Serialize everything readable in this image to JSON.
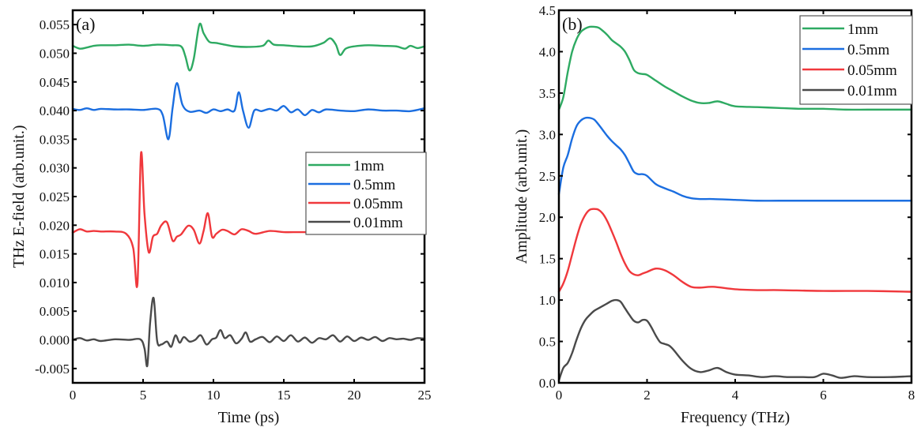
{
  "chart_data": [
    {
      "type": "line",
      "panel_label": "(a)",
      "title": "",
      "xlabel": "Time (ps)",
      "ylabel": "THz E-field (arb.unit.)",
      "xlim": [
        0,
        25
      ],
      "ylim": [
        -0.0075,
        0.0575
      ],
      "xticks": [
        0,
        5,
        10,
        15,
        20,
        25
      ],
      "xtick_labels": [
        "0",
        "5",
        "10",
        "15",
        "20",
        "25"
      ],
      "yticks": [
        -0.005,
        0.0,
        0.005,
        0.01,
        0.015,
        0.02,
        0.025,
        0.03,
        0.035,
        0.04,
        0.045,
        0.05,
        0.055
      ],
      "ytick_labels": [
        "-0.005",
        "0.000",
        "0.005",
        "0.010",
        "0.015",
        "0.020",
        "0.025",
        "0.030",
        "0.035",
        "0.040",
        "0.045",
        "0.050",
        "0.055"
      ],
      "grid": false,
      "legend_position": "center-right",
      "series": [
        {
          "name": "1mm",
          "color": "#2eaa62",
          "x": [
            0,
            0.5,
            1,
            1.5,
            2,
            3,
            4,
            5,
            6,
            7,
            7.7,
            8,
            8.3,
            8.6,
            9.0,
            9.3,
            9.7,
            10.2,
            10.8,
            11.5,
            12.5,
            13.5,
            13.9,
            14.3,
            15,
            16,
            17,
            17.8,
            18.3,
            18.7,
            19.0,
            19.4,
            20,
            21,
            22,
            23,
            23.6,
            24,
            24.5,
            25
          ],
          "y": [
            0.0513,
            0.0508,
            0.051,
            0.0513,
            0.0514,
            0.0514,
            0.0515,
            0.0513,
            0.0515,
            0.0514,
            0.0512,
            0.0495,
            0.047,
            0.049,
            0.055,
            0.0535,
            0.052,
            0.0518,
            0.0515,
            0.0512,
            0.0511,
            0.0513,
            0.0522,
            0.0515,
            0.0514,
            0.0512,
            0.0512,
            0.0518,
            0.0526,
            0.0515,
            0.0497,
            0.0508,
            0.0512,
            0.0514,
            0.0513,
            0.0512,
            0.0508,
            0.0513,
            0.0509,
            0.0512
          ]
        },
        {
          "name": "0.5mm",
          "color": "#1b6ee0",
          "x": [
            0,
            0.5,
            1,
            1.5,
            2,
            3,
            4,
            5,
            6,
            6.4,
            6.8,
            7.1,
            7.4,
            7.8,
            8.3,
            9,
            9.5,
            10,
            10.5,
            11,
            11.5,
            11.8,
            12.1,
            12.5,
            12.9,
            13.4,
            14,
            14.5,
            15,
            15.5,
            16,
            16.5,
            17,
            17.5,
            18,
            19,
            20,
            21,
            22,
            23,
            24,
            25
          ],
          "y": [
            0.0403,
            0.0401,
            0.0404,
            0.0401,
            0.0403,
            0.0402,
            0.0402,
            0.0401,
            0.0403,
            0.0392,
            0.035,
            0.0405,
            0.0448,
            0.041,
            0.0398,
            0.04,
            0.0396,
            0.0402,
            0.0399,
            0.0402,
            0.04,
            0.0432,
            0.04,
            0.037,
            0.04,
            0.0399,
            0.0403,
            0.04,
            0.0408,
            0.0397,
            0.0402,
            0.0392,
            0.0401,
            0.0397,
            0.0402,
            0.04,
            0.0399,
            0.0402,
            0.04,
            0.04,
            0.0399,
            0.0404
          ]
        },
        {
          "name": "0.05mm",
          "color": "#f0383c",
          "x": [
            0,
            0.5,
            1,
            1.5,
            2,
            3,
            3.8,
            4.3,
            4.6,
            4.85,
            5.1,
            5.4,
            5.7,
            6.0,
            6.3,
            6.7,
            7.1,
            7.4,
            7.7,
            8.2,
            8.6,
            9.0,
            9.3,
            9.6,
            9.9,
            10.2,
            10.6,
            11,
            11.5,
            12,
            12.5,
            13,
            14,
            15,
            16,
            17,
            18,
            19,
            20,
            21,
            22,
            23,
            24,
            25
          ],
          "y": [
            0.0187,
            0.0193,
            0.0189,
            0.019,
            0.0189,
            0.0189,
            0.0185,
            0.016,
            0.0098,
            0.0325,
            0.022,
            0.0153,
            0.018,
            0.0185,
            0.02,
            0.0205,
            0.0173,
            0.018,
            0.0184,
            0.0199,
            0.0192,
            0.0168,
            0.019,
            0.0221,
            0.018,
            0.0185,
            0.0192,
            0.019,
            0.0184,
            0.0193,
            0.019,
            0.0185,
            0.019,
            0.0188,
            0.0188,
            0.0188,
            0.0188,
            0.0188,
            0.0188,
            0.0188,
            0.0188,
            0.0188,
            0.0188,
            0.0188
          ]
        },
        {
          "name": "0.01mm",
          "color": "#4a4a4a",
          "x": [
            0,
            0.5,
            1,
            1.5,
            2,
            3,
            4,
            4.8,
            5.1,
            5.3,
            5.5,
            5.75,
            6.0,
            6.3,
            6.7,
            7.0,
            7.3,
            7.6,
            7.9,
            8.3,
            8.7,
            9.1,
            9.5,
            9.9,
            10.2,
            10.5,
            10.8,
            11.2,
            11.6,
            12.0,
            12.3,
            12.6,
            13,
            13.5,
            14,
            14.5,
            15,
            15.5,
            16,
            16.5,
            17,
            17.5,
            18,
            18.5,
            19,
            19.5,
            20,
            20.5,
            21,
            21.5,
            22,
            22.5,
            23,
            23.5,
            24,
            24.5,
            25
          ],
          "y": [
            0.0,
            0.0003,
            -0.0001,
            0.0001,
            -0.0002,
            0.0001,
            0.0,
            0.0001,
            -0.0015,
            -0.0045,
            0.003,
            0.0073,
            -0.0002,
            -0.0008,
            -0.0003,
            -0.0012,
            0.0008,
            -0.0005,
            0.0005,
            -0.0003,
            0.0,
            0.0008,
            -0.0008,
            0.0001,
            0.0004,
            0.0017,
            0.0003,
            0.0008,
            -0.0006,
            0.0002,
            0.0013,
            -0.0003,
            0.0001,
            0.0005,
            -0.0004,
            0.0006,
            -0.0002,
            0.0008,
            -0.0003,
            0.0004,
            -0.0005,
            0.0003,
            0.0001,
            0.0008,
            -0.0003,
            0.0006,
            -0.0002,
            0.0004,
            0.0,
            0.0005,
            -0.0002,
            0.0003,
            0.0001,
            0.0002,
            0.0,
            0.0003,
            0.0002
          ]
        }
      ]
    },
    {
      "type": "line",
      "panel_label": "(b)",
      "title": "",
      "xlabel": "Frequency (THz)",
      "ylabel": "Amplitude (arb.unit.)",
      "xlim": [
        0,
        8
      ],
      "ylim": [
        0,
        4.5
      ],
      "xticks": [
        0,
        2,
        4,
        6,
        8
      ],
      "xtick_labels": [
        "0",
        "2",
        "4",
        "6",
        "8"
      ],
      "yticks": [
        0,
        0.5,
        1.0,
        1.5,
        2.0,
        2.5,
        3.0,
        3.5,
        4.0,
        4.5
      ],
      "ytick_labels": [
        "0.0",
        "0.5",
        "1.0",
        "1.5",
        "2.0",
        "2.5",
        "3.0",
        "3.5",
        "4.0",
        "4.5"
      ],
      "grid": false,
      "legend_position": "top-right",
      "series": [
        {
          "name": "1mm",
          "color": "#2eaa62",
          "x": [
            0,
            0.1,
            0.2,
            0.3,
            0.4,
            0.5,
            0.6,
            0.7,
            0.8,
            0.9,
            1.0,
            1.1,
            1.2,
            1.3,
            1.4,
            1.5,
            1.6,
            1.7,
            1.8,
            1.9,
            2.0,
            2.2,
            2.4,
            2.6,
            2.8,
            3.0,
            3.2,
            3.4,
            3.6,
            3.8,
            4.0,
            4.5,
            5.0,
            5.5,
            6.0,
            6.5,
            7.0,
            7.5,
            8.0
          ],
          "y": [
            3.3,
            3.45,
            3.75,
            4.0,
            4.15,
            4.24,
            4.28,
            4.3,
            4.3,
            4.29,
            4.25,
            4.2,
            4.14,
            4.1,
            4.06,
            4.0,
            3.9,
            3.78,
            3.74,
            3.73,
            3.72,
            3.65,
            3.58,
            3.52,
            3.46,
            3.41,
            3.38,
            3.38,
            3.4,
            3.37,
            3.34,
            3.33,
            3.32,
            3.31,
            3.31,
            3.3,
            3.3,
            3.3,
            3.3
          ]
        },
        {
          "name": "0.5mm",
          "color": "#1b6ee0",
          "x": [
            0,
            0.1,
            0.2,
            0.3,
            0.4,
            0.5,
            0.6,
            0.7,
            0.8,
            0.9,
            1.0,
            1.1,
            1.2,
            1.3,
            1.4,
            1.5,
            1.6,
            1.7,
            1.8,
            1.9,
            2.0,
            2.2,
            2.4,
            2.6,
            2.8,
            3.0,
            3.2,
            3.5,
            4.0,
            4.5,
            5.0,
            6.0,
            7.0,
            8.0
          ],
          "y": [
            2.28,
            2.6,
            2.75,
            2.95,
            3.1,
            3.17,
            3.2,
            3.2,
            3.18,
            3.12,
            3.05,
            2.98,
            2.92,
            2.87,
            2.82,
            2.75,
            2.65,
            2.55,
            2.52,
            2.52,
            2.5,
            2.4,
            2.35,
            2.31,
            2.26,
            2.23,
            2.22,
            2.22,
            2.21,
            2.2,
            2.2,
            2.2,
            2.2,
            2.2
          ]
        },
        {
          "name": "0.05mm",
          "color": "#f0383c",
          "x": [
            0,
            0.1,
            0.2,
            0.3,
            0.4,
            0.5,
            0.6,
            0.7,
            0.8,
            0.9,
            1.0,
            1.1,
            1.2,
            1.3,
            1.4,
            1.5,
            1.6,
            1.7,
            1.8,
            1.9,
            2.0,
            2.2,
            2.4,
            2.6,
            2.8,
            3.0,
            3.2,
            3.5,
            4.0,
            4.5,
            5.0,
            6.0,
            7.0,
            8.0
          ],
          "y": [
            1.1,
            1.2,
            1.35,
            1.55,
            1.75,
            1.92,
            2.03,
            2.09,
            2.1,
            2.09,
            2.04,
            1.95,
            1.83,
            1.7,
            1.56,
            1.44,
            1.35,
            1.31,
            1.3,
            1.32,
            1.34,
            1.38,
            1.36,
            1.3,
            1.22,
            1.16,
            1.15,
            1.16,
            1.13,
            1.12,
            1.12,
            1.11,
            1.11,
            1.1
          ]
        },
        {
          "name": "0.01mm",
          "color": "#4a4a4a",
          "x": [
            0,
            0.1,
            0.2,
            0.3,
            0.4,
            0.5,
            0.6,
            0.7,
            0.8,
            0.9,
            1.0,
            1.1,
            1.2,
            1.3,
            1.4,
            1.5,
            1.6,
            1.7,
            1.8,
            1.9,
            2.0,
            2.1,
            2.2,
            2.3,
            2.4,
            2.5,
            2.6,
            2.8,
            3.0,
            3.2,
            3.4,
            3.6,
            3.8,
            4.0,
            4.3,
            4.6,
            4.9,
            5.2,
            5.5,
            5.8,
            6.0,
            6.2,
            6.4,
            6.7,
            7.0,
            7.5,
            8.0
          ],
          "y": [
            0.03,
            0.18,
            0.24,
            0.36,
            0.52,
            0.66,
            0.76,
            0.82,
            0.87,
            0.9,
            0.93,
            0.96,
            0.99,
            1.0,
            0.98,
            0.9,
            0.82,
            0.75,
            0.73,
            0.76,
            0.75,
            0.67,
            0.57,
            0.49,
            0.47,
            0.45,
            0.4,
            0.27,
            0.17,
            0.13,
            0.15,
            0.18,
            0.13,
            0.1,
            0.09,
            0.07,
            0.08,
            0.07,
            0.07,
            0.07,
            0.11,
            0.09,
            0.06,
            0.08,
            0.07,
            0.07,
            0.08
          ]
        }
      ]
    }
  ]
}
